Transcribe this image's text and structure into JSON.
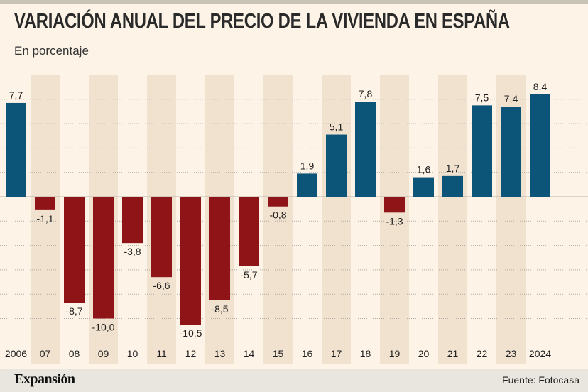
{
  "header": {
    "title": "VARIACIÓN ANUAL DEL PRECIO DE LA VIVIENDA EN ESPAÑA",
    "subtitle": "En porcentaje"
  },
  "footer": {
    "brand": "Expansión",
    "source": "Fuente: Fotocasa"
  },
  "colors": {
    "positive": "#0c5578",
    "negative": "#8e1417",
    "stripe": "#f0e2cf",
    "background": "#fdf4e7",
    "grid": "#b0aba4"
  },
  "chart_data": {
    "type": "bar",
    "title": "VARIACIÓN ANUAL DEL PRECIO DE LA VIVIENDA EN ESPAÑA",
    "subtitle": "En porcentaje",
    "xlabel": "",
    "ylabel": "En porcentaje",
    "categories": [
      "2006",
      "07",
      "08",
      "09",
      "10",
      "11",
      "12",
      "13",
      "14",
      "15",
      "16",
      "17",
      "18",
      "19",
      "20",
      "21",
      "22",
      "23",
      "2024"
    ],
    "values": [
      7.7,
      -1.1,
      -8.7,
      -10.0,
      -3.8,
      -6.6,
      -10.5,
      -8.5,
      -5.7,
      -0.8,
      1.9,
      5.1,
      7.8,
      -1.3,
      1.6,
      1.7,
      7.5,
      7.4,
      8.4
    ],
    "value_labels": [
      "7,7",
      "-1,1",
      "-8,7",
      "-10,0",
      "-3,8",
      "-6,6",
      "-10,5",
      "-8,5",
      "-5,7",
      "-0,8",
      "1,9",
      "5,1",
      "7,8",
      "-1,3",
      "1,6",
      "1,7",
      "7,5",
      "7,4",
      "8,4"
    ],
    "ylim": [
      -12,
      10
    ],
    "grid": true,
    "gridlines": [
      10,
      8,
      6,
      4,
      2,
      0,
      -2,
      -4,
      -6,
      -8,
      -10
    ]
  }
}
